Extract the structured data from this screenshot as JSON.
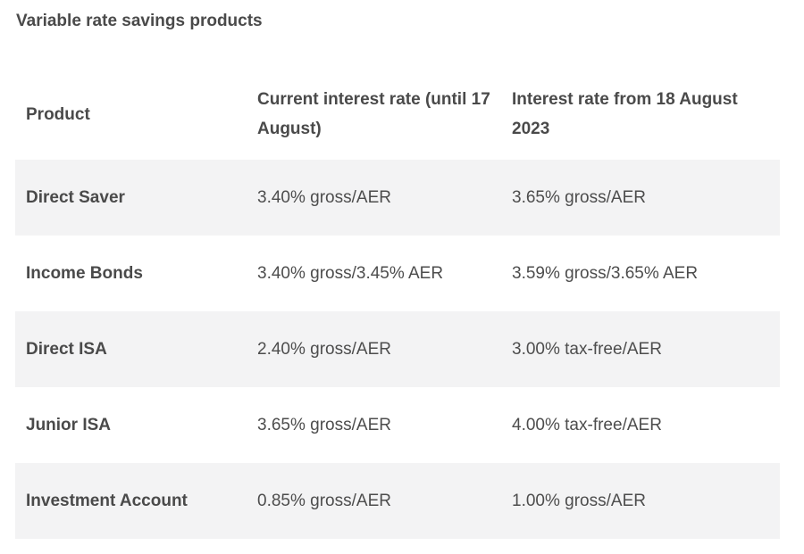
{
  "title": "Variable rate savings products",
  "table": {
    "headers": [
      "Product",
      "Current interest rate (until 17 August)",
      "Interest rate from 18 August 2023"
    ],
    "rows": [
      [
        "Direct Saver",
        "3.40% gross/AER",
        "3.65% gross/AER"
      ],
      [
        "Income Bonds",
        "3.40% gross/3.45% AER",
        "3.59% gross/3.65% AER"
      ],
      [
        "Direct ISA",
        "2.40% gross/AER",
        "3.00% tax-free/AER"
      ],
      [
        "Junior ISA",
        "3.65% gross/AER",
        "4.00% tax-free/AER"
      ],
      [
        "Investment Account",
        "0.85% gross/AER",
        "1.00% gross/AER"
      ]
    ]
  },
  "colors": {
    "shaded_row": "#f3f3f4",
    "text": "#4a4a4a"
  }
}
